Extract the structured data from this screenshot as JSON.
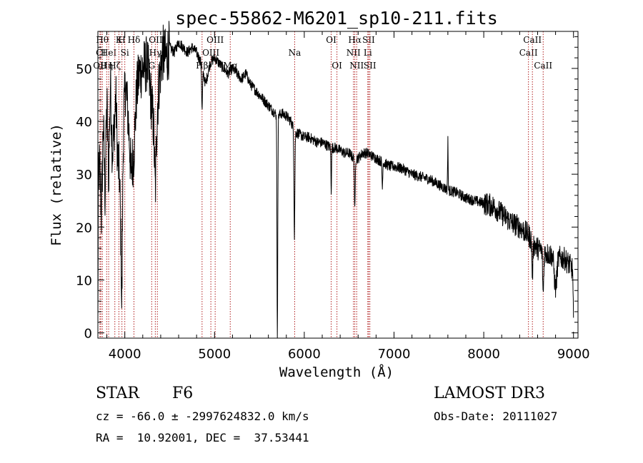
{
  "chart_data": {
    "type": "line",
    "title": "spec-55862-M6201_sp10-211.fits",
    "xlabel": "Wavelength (Å)",
    "ylabel": "Flux (relative)",
    "xlim": [
      3700,
      9050
    ],
    "ylim": [
      -1,
      57
    ],
    "xticks": [
      4000,
      5000,
      6000,
      7000,
      8000,
      9000
    ],
    "yticks": [
      0,
      10,
      20,
      30,
      40,
      50
    ],
    "series": [
      {
        "name": "flux",
        "color": "#000000",
        "anchors": [
          [
            3700,
            0
          ],
          [
            3705,
            28
          ],
          [
            3720,
            32
          ],
          [
            3740,
            22
          ],
          [
            3760,
            40
          ],
          [
            3780,
            26
          ],
          [
            3800,
            44
          ],
          [
            3820,
            29
          ],
          [
            3840,
            48
          ],
          [
            3860,
            34
          ],
          [
            3880,
            38
          ],
          [
            3900,
            45
          ],
          [
            3920,
            33
          ],
          [
            3940,
            30
          ],
          [
            3955,
            20
          ],
          [
            3965,
            14
          ],
          [
            3975,
            31
          ],
          [
            3990,
            42
          ],
          [
            4010,
            47
          ],
          [
            4040,
            40
          ],
          [
            4070,
            30
          ],
          [
            4100,
            34
          ],
          [
            4130,
            45
          ],
          [
            4160,
            49
          ],
          [
            4200,
            50
          ],
          [
            4250,
            51
          ],
          [
            4300,
            43
          ],
          [
            4340,
            36
          ],
          [
            4380,
            47
          ],
          [
            4420,
            53
          ],
          [
            4460,
            52
          ],
          [
            4500,
            54
          ],
          [
            4550,
            53
          ],
          [
            4600,
            55
          ],
          [
            4650,
            54
          ],
          [
            4700,
            53
          ],
          [
            4750,
            54
          ],
          [
            4800,
            53
          ],
          [
            4850,
            51
          ],
          [
            4900,
            47
          ],
          [
            4950,
            51
          ],
          [
            5000,
            52
          ],
          [
            5050,
            51
          ],
          [
            5100,
            50
          ],
          [
            5150,
            49
          ],
          [
            5200,
            50
          ],
          [
            5250,
            49
          ],
          [
            5300,
            48
          ],
          [
            5350,
            49
          ],
          [
            5400,
            47
          ],
          [
            5450,
            46
          ],
          [
            5500,
            45
          ],
          [
            5550,
            44
          ],
          [
            5600,
            43
          ],
          [
            5650,
            42
          ],
          [
            5700,
            41
          ],
          [
            5750,
            41.5
          ],
          [
            5800,
            41
          ],
          [
            5850,
            40
          ],
          [
            5900,
            38
          ],
          [
            5950,
            37.5
          ],
          [
            6000,
            37
          ],
          [
            6050,
            37
          ],
          [
            6100,
            36.5
          ],
          [
            6150,
            36
          ],
          [
            6200,
            36
          ],
          [
            6250,
            35.5
          ],
          [
            6300,
            35
          ],
          [
            6350,
            35
          ],
          [
            6400,
            34.5
          ],
          [
            6450,
            34
          ],
          [
            6500,
            34
          ],
          [
            6550,
            33
          ],
          [
            6600,
            33
          ],
          [
            6650,
            34
          ],
          [
            6700,
            34
          ],
          [
            6750,
            33.5
          ],
          [
            6800,
            33
          ],
          [
            6850,
            32.5
          ],
          [
            6900,
            32
          ],
          [
            6950,
            31.5
          ],
          [
            7000,
            31.5
          ],
          [
            7100,
            31
          ],
          [
            7200,
            30
          ],
          [
            7300,
            29.5
          ],
          [
            7400,
            29
          ],
          [
            7500,
            28
          ],
          [
            7600,
            27
          ],
          [
            7700,
            26.5
          ],
          [
            7800,
            25.5
          ],
          [
            7900,
            25
          ],
          [
            8000,
            24.5
          ],
          [
            8100,
            24
          ],
          [
            8200,
            22.5
          ],
          [
            8300,
            21
          ],
          [
            8400,
            20
          ],
          [
            8500,
            18.5
          ],
          [
            8550,
            17
          ],
          [
            8600,
            16
          ],
          [
            8700,
            15
          ],
          [
            8800,
            14.5
          ],
          [
            8900,
            14
          ],
          [
            8950,
            13
          ],
          [
            8990,
            12
          ],
          [
            9000,
            2
          ]
        ],
        "absorption_features": [
          [
            3970,
            9,
            12
          ],
          [
            4340,
            12,
            9
          ],
          [
            4861,
            7,
            8
          ],
          [
            5700,
            6,
            43
          ],
          [
            5890,
            7,
            20
          ],
          [
            6300,
            5,
            8
          ],
          [
            6563,
            6,
            10
          ],
          [
            6870,
            5,
            5
          ],
          [
            7600,
            4,
            -10
          ],
          [
            8542,
            8,
            6
          ],
          [
            8662,
            8,
            8
          ],
          [
            8800,
            20,
            6
          ]
        ]
      }
    ],
    "line_markers": [
      {
        "wl": 3723,
        "label": "OII",
        "row": 2
      },
      {
        "wl": 3733,
        "label": "CI",
        "row": 1
      },
      {
        "wl": 3750,
        "label": "Hθ",
        "row": 0
      },
      {
        "wl": 3798,
        "label": "Hη",
        "row": 2
      },
      {
        "wl": 3820,
        "label": "HeI",
        "row": 1
      },
      {
        "wl": 3889,
        "label": "Hζ",
        "row": 2
      },
      {
        "wl": 3934,
        "label": "K",
        "row": 0
      },
      {
        "wl": 3968,
        "label": "H",
        "row": 0
      },
      {
        "wl": 4000,
        "label": "Si",
        "row": 1
      },
      {
        "wl": 4102,
        "label": "Hδ",
        "row": 0
      },
      {
        "wl": 4300,
        "label": "G",
        "row": 2
      },
      {
        "wl": 4340,
        "label": "Hγ",
        "row": 1
      },
      {
        "wl": 4363,
        "label": "OIII",
        "row": 0
      },
      {
        "wl": 4861,
        "label": "Hβ",
        "row": 2
      },
      {
        "wl": 4959,
        "label": "OIII",
        "row": 1
      },
      {
        "wl": 5007,
        "label": "OIII",
        "row": 0
      },
      {
        "wl": 5175,
        "label": "Mg",
        "row": 2
      },
      {
        "wl": 5893,
        "label": "Na",
        "row": 1
      },
      {
        "wl": 6300,
        "label": "OI",
        "row": 0
      },
      {
        "wl": 6364,
        "label": "OI",
        "row": 2
      },
      {
        "wl": 6548,
        "label": "NII",
        "row": 1
      },
      {
        "wl": 6563,
        "label": "Hα",
        "row": 0
      },
      {
        "wl": 6584,
        "label": "NII",
        "row": 2
      },
      {
        "wl": 6708,
        "label": "Li",
        "row": 1
      },
      {
        "wl": 6717,
        "label": "SII",
        "row": 0
      },
      {
        "wl": 6731,
        "label": "SII",
        "row": 2
      },
      {
        "wl": 8498,
        "label": "CaII",
        "row": 1
      },
      {
        "wl": 8542,
        "label": "CaII",
        "row": 0
      },
      {
        "wl": 8662,
        "label": "CaII",
        "row": 2
      }
    ]
  },
  "info": {
    "object_class": "STAR",
    "subclass": "F6",
    "survey": "LAMOST DR3",
    "redshift_line": "cz = -66.0 ± -2997624832.0 km/s",
    "obs_date_line": "Obs-Date: 20111027",
    "coord_line": "RA =  10.92001, DEC =  37.53441"
  }
}
